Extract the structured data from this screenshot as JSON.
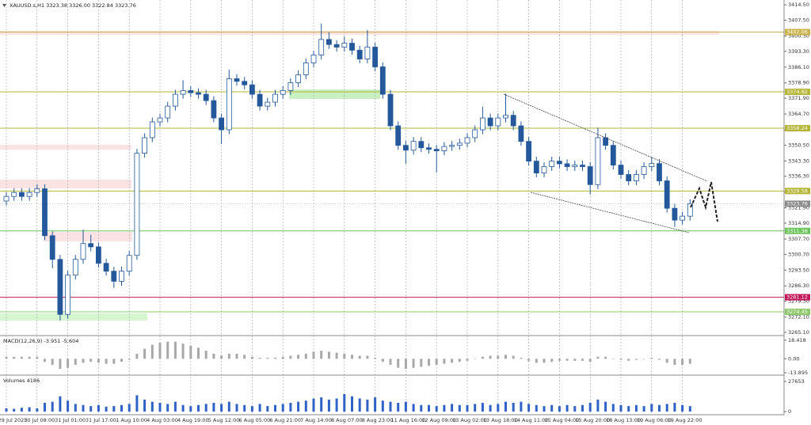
{
  "chart_data": [
    {
      "type": "candlestick",
      "title": "XAUUSD.s,H1  3323.38 3326.00 3322.84 3323.76",
      "color": "#24589a",
      "grid": true,
      "ylim": [
        3264.0,
        3416.7
      ],
      "yticks": [
        {
          "value": 3414.5,
          "label": "3414.50"
        },
        {
          "value": 3407.5,
          "label": "3407.50"
        },
        {
          "value": 3400.3,
          "label": "3400.30"
        },
        {
          "value": 3393.3,
          "label": "3393.30"
        },
        {
          "value": 3386.1,
          "label": "3386.10"
        },
        {
          "value": 3378.9,
          "label": "3378.90"
        },
        {
          "value": 3371.9,
          "label": "3371.90"
        },
        {
          "value": 3364.7,
          "label": "3364.70"
        },
        {
          "value": 3357.5,
          "label": "3357.50"
        },
        {
          "value": 3350.5,
          "label": "3350.50"
        },
        {
          "value": 3343.3,
          "label": "3343.30"
        },
        {
          "value": 3336.3,
          "label": "3336.30"
        },
        {
          "value": 3329.1,
          "label": "3329.10"
        },
        {
          "value": 3321.9,
          "label": "3321.90"
        },
        {
          "value": 3314.9,
          "label": "3314.90"
        },
        {
          "value": 3307.7,
          "label": "3307.70"
        },
        {
          "value": 3300.7,
          "label": "3300.70"
        },
        {
          "value": 3293.5,
          "label": "3293.50"
        },
        {
          "value": 3286.3,
          "label": "3286.30"
        },
        {
          "value": 3279.3,
          "label": "3279.30"
        },
        {
          "value": 3272.1,
          "label": "3272.10"
        },
        {
          "value": 3265.1,
          "label": "3265.10"
        }
      ],
      "levels": [
        3402.06,
        3374.82,
        3358.24,
        3329.58,
        3311.38,
        3281.12,
        3274.45
      ],
      "level_colors": [
        "#c9b24a",
        "#b5b536",
        "#b5b536",
        "#b5b536",
        "#6cc45a",
        "#c2185b",
        "#8dc86a"
      ],
      "last": 3323.76,
      "categories": [
        "29 Jul 2025",
        null,
        null,
        null,
        "30 Jul 08:00",
        null,
        null,
        null,
        "31 Jul 01:00",
        null,
        null,
        null,
        "31 Jul 17:00",
        null,
        null,
        null,
        "1 Aug 10:00",
        null,
        null,
        null,
        "4 Aug 03:00",
        null,
        null,
        null,
        "4 Aug 19:00",
        null,
        null,
        null,
        "5 Aug 12:00",
        null,
        null,
        null,
        "6 Aug 05:00",
        null,
        null,
        null,
        "6 Aug 21:00",
        null,
        null,
        null,
        "7 Aug 14:00",
        null,
        null,
        null,
        "8 Aug 07:00",
        null,
        null,
        null,
        "8 Aug 23:00",
        null,
        null,
        null,
        "11 Aug 16:00",
        null,
        null,
        null,
        "12 Aug 09:00",
        null,
        null,
        null,
        "13 Aug 02:00",
        null,
        null,
        null,
        "13 Aug 18:00",
        null,
        null,
        null,
        "14 Aug 11:00",
        null,
        null,
        null,
        "15 Aug 04:00",
        null,
        null,
        null,
        "15 Aug 20:00",
        null,
        null,
        null,
        "18 Aug 13:00",
        null,
        null,
        null,
        "19 Aug 06:00",
        null,
        null,
        null,
        "19 Aug 22:00",
        null
      ],
      "open": [
        3325.0,
        3327.1,
        3328.9,
        3327.1,
        3328.9,
        3330.6,
        3309.2,
        3298.4,
        3273.3,
        3291.2,
        3298.4,
        3305.6,
        3304.1,
        3296.6,
        3293.0,
        3288.4,
        3293.0,
        3300.2,
        3346.8,
        3353.9,
        3361.1,
        3362.9,
        3368.3,
        3373.7,
        3375.4,
        3374.4,
        3373.7,
        3370.8,
        3362.9,
        3357.5,
        3380.8,
        3379.6,
        3378.0,
        3373.7,
        3368.3,
        3370.1,
        3373.7,
        3375.4,
        3379.0,
        3382.6,
        3388.0,
        3391.6,
        3398.7,
        3396.4,
        3395.2,
        3397.0,
        3393.8,
        3389.8,
        3395.2,
        3386.2,
        3373.7,
        3359.3,
        3350.4,
        3348.2,
        3352.2,
        3349.3,
        3348.6,
        3347.9,
        3349.9,
        3350.4,
        3351.4,
        3353.9,
        3357.5,
        3362.9,
        3359.3,
        3362.9,
        3364.1,
        3359.3,
        3352.2,
        3343.2,
        3337.8,
        3340.7,
        3343.2,
        3342.0,
        3340.7,
        3341.4,
        3340.7,
        3332.5,
        3353.9,
        3350.4,
        3341.4,
        3337.1,
        3334.2,
        3337.1,
        3340.7,
        3342.1,
        3334.2,
        3321.7,
        3316.3,
        3318.1
      ],
      "high": [
        3329.1,
        3330.9,
        3330.9,
        3330.9,
        3332.6,
        3332.6,
        3311.2,
        3300.4,
        3293.2,
        3300.4,
        3312.0,
        3309.6,
        3306.1,
        3298.6,
        3295.0,
        3295.0,
        3302.2,
        3348.8,
        3355.9,
        3363.1,
        3364.9,
        3370.3,
        3375.7,
        3380.1,
        3377.4,
        3376.4,
        3375.7,
        3372.8,
        3364.9,
        3385.0,
        3382.8,
        3381.6,
        3380.0,
        3375.7,
        3372.1,
        3375.7,
        3377.4,
        3381.0,
        3384.6,
        3390.0,
        3393.6,
        3406.0,
        3402.0,
        3398.4,
        3400.0,
        3399.0,
        3395.8,
        3403.0,
        3397.2,
        3388.2,
        3375.7,
        3361.3,
        3352.4,
        3354.2,
        3354.2,
        3351.3,
        3350.6,
        3351.9,
        3352.4,
        3353.4,
        3355.9,
        3359.5,
        3368.0,
        3364.9,
        3364.9,
        3374.0,
        3366.1,
        3361.3,
        3354.2,
        3345.2,
        3342.7,
        3345.2,
        3345.2,
        3344.0,
        3343.4,
        3343.4,
        3342.7,
        3358.5,
        3355.9,
        3352.4,
        3343.4,
        3339.1,
        3339.1,
        3342.7,
        3345.0,
        3344.1,
        3336.2,
        3323.7,
        3320.1,
        3325.8
      ],
      "low": [
        3323.0,
        3325.1,
        3325.1,
        3325.1,
        3326.9,
        3307.2,
        3294.4,
        3270.5,
        3271.3,
        3289.2,
        3296.4,
        3302.1,
        3294.6,
        3291.0,
        3285.4,
        3286.4,
        3291.0,
        3298.2,
        3344.8,
        3351.9,
        3359.1,
        3360.9,
        3366.3,
        3371.7,
        3372.4,
        3371.7,
        3368.8,
        3360.9,
        3351.0,
        3355.5,
        3377.6,
        3376.0,
        3371.7,
        3366.3,
        3366.3,
        3368.1,
        3371.7,
        3373.4,
        3377.0,
        3380.6,
        3386.0,
        3389.6,
        3394.4,
        3393.2,
        3393.2,
        3391.8,
        3387.8,
        3387.8,
        3384.2,
        3371.7,
        3357.3,
        3348.4,
        3342.0,
        3346.2,
        3347.3,
        3346.6,
        3338.0,
        3345.9,
        3347.9,
        3348.4,
        3349.4,
        3351.9,
        3355.5,
        3357.3,
        3357.3,
        3360.9,
        3357.3,
        3350.2,
        3341.2,
        3335.8,
        3335.8,
        3338.7,
        3340.0,
        3338.7,
        3338.7,
        3338.7,
        3328.0,
        3330.5,
        3348.4,
        3339.4,
        3335.1,
        3332.2,
        3332.2,
        3335.1,
        3338.7,
        3332.2,
        3319.7,
        3313.2,
        3314.3,
        3316.1
      ],
      "close": [
        3327.1,
        3328.9,
        3327.1,
        3328.9,
        3330.6,
        3309.2,
        3298.4,
        3273.3,
        3291.2,
        3298.4,
        3305.6,
        3304.1,
        3296.6,
        3293.0,
        3288.4,
        3293.0,
        3300.2,
        3346.8,
        3353.9,
        3361.1,
        3362.9,
        3368.3,
        3373.7,
        3375.4,
        3374.4,
        3373.7,
        3370.8,
        3362.9,
        3357.5,
        3380.8,
        3379.6,
        3378.0,
        3373.7,
        3368.3,
        3370.1,
        3373.7,
        3375.4,
        3379.0,
        3382.6,
        3388.0,
        3391.6,
        3398.7,
        3396.4,
        3395.2,
        3397.0,
        3393.8,
        3389.8,
        3395.2,
        3386.2,
        3373.7,
        3359.3,
        3350.4,
        3348.2,
        3352.2,
        3349.3,
        3348.6,
        3347.9,
        3349.9,
        3350.4,
        3351.4,
        3353.9,
        3357.5,
        3362.9,
        3359.3,
        3362.9,
        3364.1,
        3359.3,
        3352.2,
        3343.2,
        3337.8,
        3340.7,
        3343.2,
        3342.0,
        3340.7,
        3341.4,
        3340.7,
        3332.5,
        3353.9,
        3350.4,
        3341.4,
        3337.1,
        3334.2,
        3337.1,
        3340.7,
        3342.1,
        3334.2,
        3321.7,
        3316.3,
        3318.1,
        3323.8
      ]
    },
    {
      "type": "bar",
      "title": "MACD(12,26,9) -3.951 -5.604",
      "color": "#a8a8a8",
      "ylim": [
        -14.7,
        21.5
      ],
      "yticks": [
        18.418,
        {
          "value": 0,
          "label": "0.00"
        },
        -13.895
      ],
      "values": [
        2,
        2,
        2,
        2,
        2,
        -3,
        -6,
        -10,
        -9,
        -6,
        -4,
        -3,
        -4,
        -5,
        -5,
        -3,
        -1,
        5,
        10,
        14,
        16,
        17,
        17,
        15,
        13,
        11,
        8,
        5,
        3,
        5,
        5,
        4,
        2,
        1,
        1,
        1,
        2,
        3,
        4,
        5,
        7,
        8,
        7,
        6,
        5,
        4,
        3,
        3,
        1,
        -3,
        -6,
        -9,
        -10,
        -9,
        -8,
        -7,
        -6,
        -5,
        -4,
        -3,
        -2,
        0,
        2,
        3,
        3,
        4,
        3,
        1,
        -2,
        -4,
        -4,
        -3,
        -2,
        -2,
        -2,
        -2,
        -3,
        2,
        2,
        0,
        -1,
        -2,
        -1,
        0,
        1,
        -1,
        -4,
        -6,
        -6,
        -5
      ]
    },
    {
      "type": "bar",
      "title": "Volumes 4186",
      "color": "#2f62c4",
      "ylim": [
        0,
        32000
      ],
      "yticks": [
        27653,
        0
      ],
      "values": [
        3000,
        2500,
        3500,
        4000,
        3000,
        8000,
        9000,
        14000,
        10000,
        7000,
        6000,
        5000,
        6000,
        4500,
        5000,
        6000,
        7000,
        15000,
        11000,
        9000,
        8000,
        7000,
        9000,
        6000,
        5000,
        6000,
        7000,
        8000,
        7000,
        9000,
        7000,
        6000,
        5000,
        7000,
        5000,
        6000,
        7000,
        8000,
        9000,
        10000,
        12000,
        13000,
        11000,
        12000,
        16000,
        14000,
        12000,
        11000,
        13000,
        10000,
        9000,
        8000,
        9000,
        7000,
        6000,
        6000,
        5000,
        6000,
        7000,
        6000,
        6000,
        7000,
        8000,
        6000,
        7000,
        9000,
        8000,
        9000,
        7000,
        6000,
        5000,
        6000,
        5000,
        6000,
        5000,
        6000,
        8000,
        11000,
        9000,
        7000,
        6000,
        5000,
        6000,
        5000,
        7000,
        6000,
        7000,
        8000,
        6000,
        5000
      ]
    }
  ]
}
